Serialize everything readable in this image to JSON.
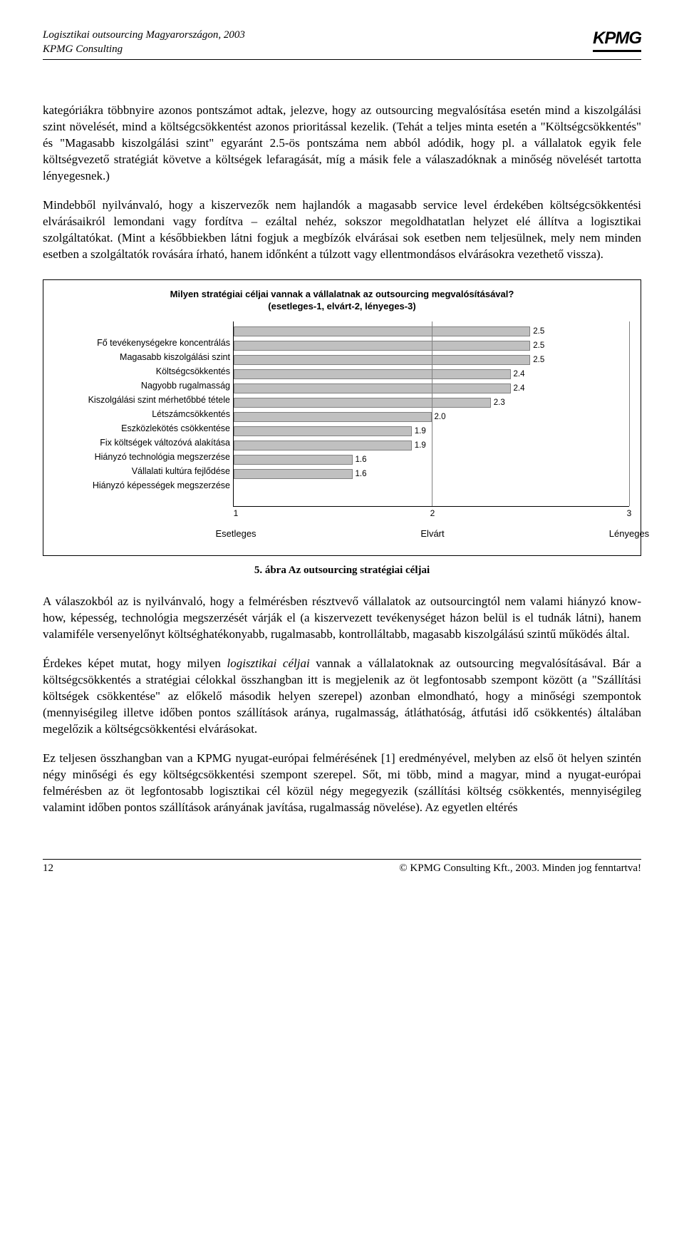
{
  "header": {
    "title_line1": "Logisztikai outsourcing Magyarországon, 2003",
    "title_line2": "KPMG Consulting",
    "logo_text": "KPMG"
  },
  "paragraphs": {
    "p1": "kategóriákra többnyire azonos pontszámot adtak, jelezve, hogy az outsourcing megvalósítása esetén mind a kiszolgálási szint növelését, mind a költségcsökkentést azonos prioritással kezelik. (Tehát a teljes minta esetén a \"Költségcsökkentés\" és \"Magasabb kiszolgálási szint\" egyaránt 2.5-ös pontszáma nem abból adódik, hogy pl. a vállalatok egyik fele költségvezető stratégiát követve a költségek lefaragását, míg a másik fele a válaszadóknak a minőség növelését tartotta lényegesnek.)",
    "p2": "Mindebből nyilvánvaló, hogy a kiszervezők nem hajlandók a magasabb service level érdekében költségcsökkentési elvárásaikról lemondani vagy fordítva – ezáltal nehéz, sokszor megoldhatatlan helyzet elé állítva a logisztikai szolgáltatókat. (Mint a későbbiekben látni fogjuk a megbízók elvárásai sok esetben nem teljesülnek, mely nem minden esetben a szolgáltatók rovására írható, hanem időnként a túlzott vagy ellentmondásos elvárásokra vezethető vissza).",
    "p3": "A válaszokból az is nyilvánvaló, hogy a felmérésben résztvevő vállalatok az outsourcingtól nem valami hiányzó know-how, képesség, technológia megszerzését várják el (a kiszervezett tevékenységet házon belül is el tudnák látni), hanem valamiféle versenyelőnyt költséghatékonyabb, rugalmasabb, kontrolláltabb, magasabb kiszolgálású szintű működés által.",
    "p4_prefix": "Érdekes képet mutat, hogy milyen ",
    "p4_italic": "logisztikai céljai",
    "p4_suffix": " vannak a vállalatoknak az outsourcing megvalósításával. Bár a költségcsökkentés a stratégiai célokkal összhangban itt is megjelenik az öt legfontosabb szempont között (a \"Szállítási költségek csökkentése\" az előkelő második helyen szerepel) azonban elmondható, hogy a minőségi szempontok (mennyiségileg illetve időben pontos szállítások aránya, rugalmasság, átláthatóság, átfutási idő csökkentés) általában megelőzik a költségcsökkentési elvárásokat.",
    "p5": "Ez teljesen összhangban van a KPMG nyugat-európai felmérésének [1] eredményével, melyben az első öt helyen szintén négy minőségi és egy költségcsökkentési szempont szerepel. Sőt, mi több, mind a magyar, mind a nyugat-európai felmérésben az öt legfontosabb logisztikai cél közül négy megegyezik (szállítási költség csökkentés, mennyiségileg valamint időben pontos szállítások arányának javítása, rugalmasság növelése). Az egyetlen eltérés"
  },
  "chart": {
    "type": "bar",
    "title": "Milyen stratégiai céljai vannak a vállalatnak az outsourcing megvalósításával?",
    "subtitle": "(esetleges-1, elvárt-2, lényeges-3)",
    "xmin": 1,
    "xmax": 3,
    "xtick_step": 1,
    "x_ticks": [
      "1",
      "2",
      "3"
    ],
    "x_axis_labels": [
      "Esetleges",
      "Elvárt",
      "Lényeges"
    ],
    "bar_color": "#c0c0c0",
    "bar_border": "#808080",
    "grid_color": "#808080",
    "label_fontsize": 12.5,
    "value_fontsize": 11.5,
    "items": [
      {
        "label": "Fő tevékenységekre koncentrálás",
        "value": 2.5
      },
      {
        "label": "Magasabb kiszolgálási szint",
        "value": 2.5
      },
      {
        "label": "Költségcsökkentés",
        "value": 2.5
      },
      {
        "label": "Nagyobb rugalmasság",
        "value": 2.4
      },
      {
        "label": "Kiszolgálási szint mérhetőbbé tétele",
        "value": 2.4
      },
      {
        "label": "Létszámcsökkentés",
        "value": 2.3
      },
      {
        "label": "Eszközlekötés csökkentése",
        "value": 2.0
      },
      {
        "label": "Fix költségek változóvá alakítása",
        "value": 1.9
      },
      {
        "label": "Hiányzó technológia megszerzése",
        "value": 1.9
      },
      {
        "label": "Vállalati kultúra fejlődése",
        "value": 1.6
      },
      {
        "label": "Hiányzó képességek megszerzése",
        "value": 1.6
      }
    ]
  },
  "caption": "5. ábra Az outsourcing stratégiai céljai",
  "footer": {
    "page": "12",
    "copyright": "© KPMG Consulting Kft., 2003. Minden jog fenntartva!"
  }
}
